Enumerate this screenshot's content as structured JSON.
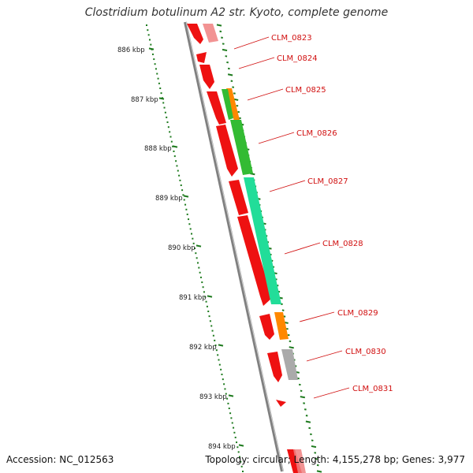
{
  "title": "Clostridium botulinum A2 str. Kyoto, complete genome",
  "footer": {
    "accession": "Accession: NC_012563",
    "topology": "Topology: circular; Length: 4,155,278 bp; Genes: 3,977"
  },
  "colors": {
    "label": "#d11010",
    "backbone": "#808080",
    "tick": "#1d7a1d",
    "forward_gene": "#ee1111",
    "cog_green": "#33bb33",
    "cog_teal": "#22dd99",
    "cog_orange": "#ff8800",
    "cog_gray": "#aaaaaa",
    "cog_pink": "#f08080"
  },
  "scale_ticks": [
    "886 kbp",
    "887 kbp",
    "888 kbp",
    "889 kbp",
    "890 kbp",
    "891 kbp",
    "892 kbp",
    "893 kbp",
    "894 kbp"
  ],
  "genes": [
    {
      "label": "CLM_0823"
    },
    {
      "label": "CLM_0824"
    },
    {
      "label": "CLM_0825"
    },
    {
      "label": "CLM_0826"
    },
    {
      "label": "CLM_0827"
    },
    {
      "label": "CLM_0828"
    },
    {
      "label": "CLM_0829"
    },
    {
      "label": "CLM_0830"
    },
    {
      "label": "CLM_0831"
    }
  ]
}
